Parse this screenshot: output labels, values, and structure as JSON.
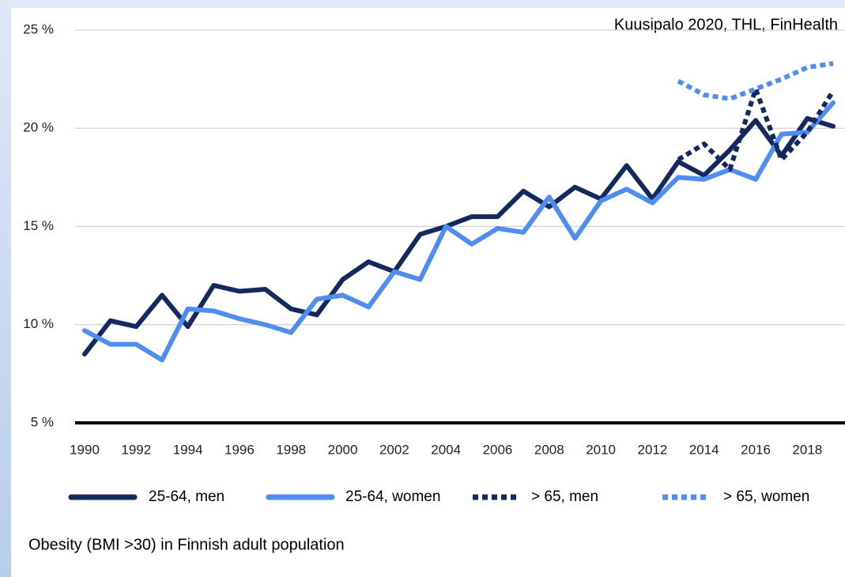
{
  "chart_data": {
    "type": "line",
    "source": "Kuusipalo 2020, THL, FinHealth",
    "caption": "Obesity (BMI >30) in Finnish adult population",
    "x": [
      1990,
      1991,
      1992,
      1993,
      1994,
      1995,
      1996,
      1997,
      1998,
      1999,
      2000,
      2001,
      2002,
      2003,
      2004,
      2005,
      2006,
      2007,
      2008,
      2009,
      2010,
      2011,
      2012,
      2013,
      2014,
      2015,
      2016,
      2017,
      2018,
      2019
    ],
    "xlim": [
      1990,
      2019
    ],
    "xticks": [
      1990,
      1992,
      1994,
      1996,
      1998,
      2000,
      2002,
      2004,
      2006,
      2008,
      2010,
      2012,
      2014,
      2016,
      2018
    ],
    "ylim": [
      5,
      25
    ],
    "yticks": [
      {
        "value": 5,
        "label": "5 %"
      },
      {
        "value": 10,
        "label": "10 %"
      },
      {
        "value": 15,
        "label": "15 %"
      },
      {
        "value": 20,
        "label": "20 %"
      },
      {
        "value": 25,
        "label": "25 %"
      }
    ],
    "grid": true,
    "series": [
      {
        "name": "25-64, men",
        "color": "#15295e",
        "dashed": false,
        "values": [
          8.5,
          10.2,
          9.9,
          11.5,
          9.9,
          12.0,
          11.7,
          11.8,
          10.8,
          10.5,
          12.3,
          13.2,
          12.7,
          14.6,
          15.0,
          15.5,
          15.5,
          16.8,
          16.0,
          17.0,
          16.4,
          18.1,
          16.4,
          18.3,
          17.6,
          18.9,
          20.4,
          18.6,
          20.5,
          20.1
        ]
      },
      {
        "name": "25-64, women",
        "color": "#4f8ef0",
        "dashed": false,
        "values": [
          9.7,
          9.0,
          9.0,
          8.2,
          10.8,
          10.7,
          10.3,
          10.0,
          9.6,
          11.3,
          11.5,
          10.9,
          12.7,
          12.3,
          15.0,
          14.1,
          14.9,
          14.7,
          16.5,
          14.4,
          16.3,
          16.9,
          16.2,
          17.5,
          17.4,
          17.9,
          17.4,
          19.7,
          19.8,
          21.3
        ]
      },
      {
        "name": "> 65, men",
        "color": "#15295e",
        "dashed": true,
        "values": [
          null,
          null,
          null,
          null,
          null,
          null,
          null,
          null,
          null,
          null,
          null,
          null,
          null,
          null,
          null,
          null,
          null,
          null,
          null,
          null,
          null,
          null,
          null,
          18.4,
          19.2,
          17.9,
          22.0,
          18.4,
          19.8,
          21.9
        ]
      },
      {
        "name": "> 65, women",
        "color": "#4f8ef0",
        "dashed": true,
        "values": [
          null,
          null,
          null,
          null,
          null,
          null,
          null,
          null,
          null,
          null,
          null,
          null,
          null,
          null,
          null,
          null,
          null,
          null,
          null,
          null,
          null,
          null,
          null,
          22.4,
          21.7,
          21.5,
          22.0,
          22.5,
          23.1,
          23.3
        ]
      }
    ]
  }
}
